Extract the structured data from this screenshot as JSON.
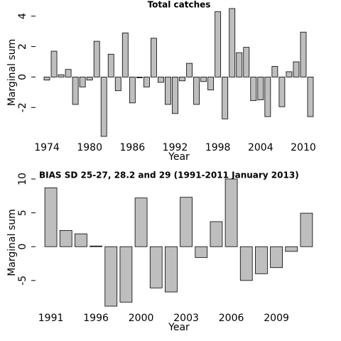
{
  "chart_data": [
    {
      "type": "bar",
      "title": "Total catches",
      "xlabel": "Year",
      "ylabel": "Marginal sum",
      "categories": [
        "1974",
        null,
        null,
        null,
        null,
        null,
        "1980",
        null,
        null,
        null,
        null,
        null,
        "1986",
        null,
        null,
        null,
        null,
        null,
        "1992",
        null,
        null,
        null,
        null,
        null,
        "1998",
        null,
        null,
        null,
        null,
        null,
        "2004",
        null,
        null,
        null,
        null,
        null,
        "2010",
        null
      ],
      "values": [
        -0.2,
        1.7,
        0.15,
        0.5,
        -1.8,
        -0.65,
        -0.2,
        2.35,
        -3.9,
        1.5,
        -0.9,
        2.9,
        -1.7,
        -0.05,
        -0.65,
        2.55,
        -0.35,
        -1.8,
        -2.4,
        -0.25,
        0.9,
        -1.8,
        -0.3,
        -0.85,
        4.3,
        -2.75,
        4.5,
        1.6,
        1.95,
        -1.55,
        -1.5,
        -2.6,
        0.7,
        -1.95,
        0.35,
        1.0,
        2.95,
        -2.6
      ],
      "color": "#bebebe",
      "ylim": [
        -3.9,
        4.5
      ],
      "yticks": [
        -2,
        0,
        2,
        4
      ]
    },
    {
      "type": "bar",
      "title": "BIAS SD 25-27, 28.2 and 29 (1991-2011 January 2013)",
      "xlabel": "Year",
      "ylabel": "Marginal sum",
      "categories": [
        "1991",
        null,
        null,
        "1996",
        null,
        null,
        "2000",
        null,
        null,
        "2003",
        null,
        null,
        "2006",
        null,
        null,
        "2009",
        null,
        null
      ],
      "values": [
        8.7,
        2.4,
        1.9,
        0.1,
        -8.8,
        -8.2,
        7.2,
        -6.1,
        -6.7,
        7.3,
        -1.6,
        3.7,
        10.0,
        -5.0,
        -4.0,
        -3.1,
        -0.7,
        4.95
      ],
      "color": "#bebebe",
      "ylim": [
        -8.8,
        10
      ],
      "yticks": [
        -5,
        0,
        5,
        10
      ]
    }
  ]
}
